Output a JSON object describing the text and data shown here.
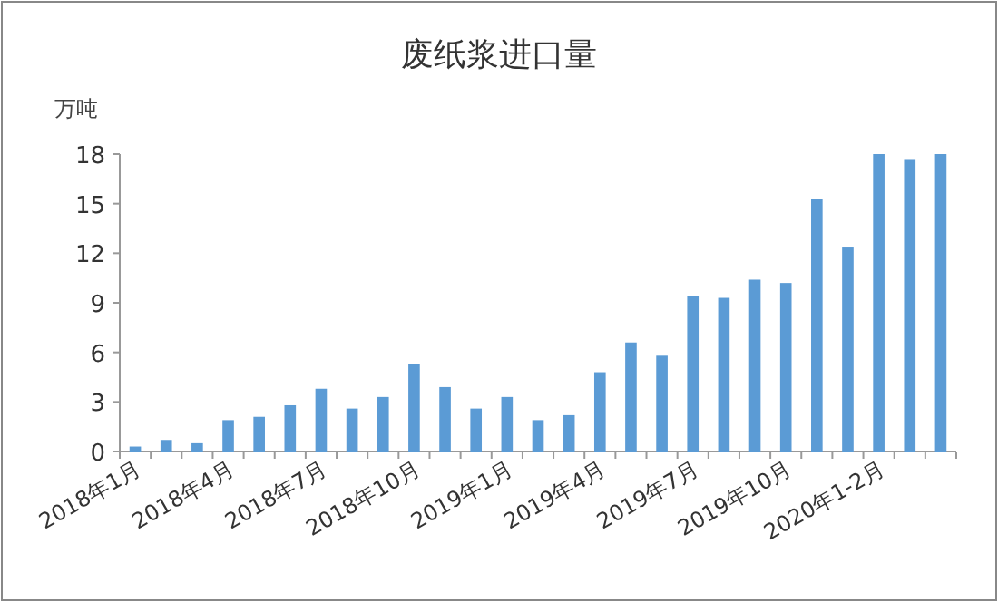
{
  "chart_data": {
    "type": "bar",
    "title": "废纸浆进口量",
    "ylabel": "万吨",
    "categories": [
      "2018年1月",
      null,
      null,
      "2018年4月",
      null,
      null,
      "2018年7月",
      null,
      null,
      "2018年10月",
      null,
      null,
      "2019年1月",
      null,
      null,
      "2019年4月",
      null,
      null,
      "2019年7月",
      null,
      null,
      "2019年10月",
      null,
      null,
      "2020年1-2月",
      null,
      null
    ],
    "values": [
      0.3,
      0.7,
      0.5,
      1.9,
      2.1,
      2.8,
      3.8,
      2.6,
      3.3,
      5.3,
      3.9,
      2.6,
      3.3,
      1.9,
      2.2,
      4.8,
      6.6,
      5.8,
      9.4,
      9.3,
      10.4,
      10.2,
      15.3,
      12.4,
      18,
      17.7,
      18
    ],
    "color": "#5b9bd5",
    "ylim": [
      0,
      18
    ],
    "yticks": [
      0,
      3,
      6,
      9,
      12,
      15,
      18
    ],
    "grid": false
  }
}
